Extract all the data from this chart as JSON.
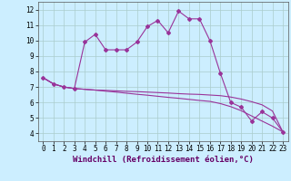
{
  "xlabel": "Windchill (Refroidissement éolien,°C)",
  "line1_x": [
    0,
    1,
    2,
    3,
    4,
    5,
    6,
    7,
    8,
    9,
    10,
    11,
    12,
    13,
    14,
    15,
    16,
    17,
    18,
    19,
    20,
    21,
    22,
    23
  ],
  "line1_y": [
    7.6,
    7.2,
    7.0,
    6.9,
    9.9,
    10.4,
    9.4,
    9.4,
    9.4,
    9.9,
    10.9,
    11.3,
    10.5,
    11.9,
    11.4,
    11.4,
    10.0,
    7.9,
    6.0,
    5.7,
    4.8,
    5.4,
    5.0,
    4.1
  ],
  "line2_x": [
    0,
    1,
    2,
    3,
    4,
    5,
    6,
    7,
    8,
    9,
    10,
    11,
    12,
    13,
    14,
    15,
    16,
    17,
    18,
    19,
    20,
    21,
    22,
    23
  ],
  "line2_y": [
    7.6,
    7.2,
    7.0,
    6.9,
    6.85,
    6.8,
    6.78,
    6.75,
    6.72,
    6.7,
    6.67,
    6.64,
    6.61,
    6.57,
    6.54,
    6.52,
    6.48,
    6.44,
    6.35,
    6.22,
    6.05,
    5.85,
    5.45,
    4.1
  ],
  "line3_x": [
    0,
    1,
    2,
    3,
    4,
    5,
    6,
    7,
    8,
    9,
    10,
    11,
    12,
    13,
    14,
    15,
    16,
    17,
    18,
    19,
    20,
    21,
    22,
    23
  ],
  "line3_y": [
    7.6,
    7.2,
    7.0,
    6.9,
    6.85,
    6.8,
    6.73,
    6.67,
    6.6,
    6.53,
    6.47,
    6.4,
    6.33,
    6.27,
    6.2,
    6.13,
    6.07,
    5.93,
    5.73,
    5.47,
    5.13,
    4.8,
    4.47,
    4.1
  ],
  "line_color": "#993399",
  "bg_color": "#cceeff",
  "grid_color": "#aacccc",
  "ylim": [
    3.5,
    12.5
  ],
  "xlim": [
    -0.5,
    23.5
  ],
  "yticks": [
    4,
    5,
    6,
    7,
    8,
    9,
    10,
    11,
    12
  ],
  "xticks": [
    0,
    1,
    2,
    3,
    4,
    5,
    6,
    7,
    8,
    9,
    10,
    11,
    12,
    13,
    14,
    15,
    16,
    17,
    18,
    19,
    20,
    21,
    22,
    23
  ],
  "tick_fontsize": 5.5,
  "xlabel_fontsize": 6.5,
  "marker": "D",
  "marker_size": 2.0,
  "linewidth": 0.8
}
